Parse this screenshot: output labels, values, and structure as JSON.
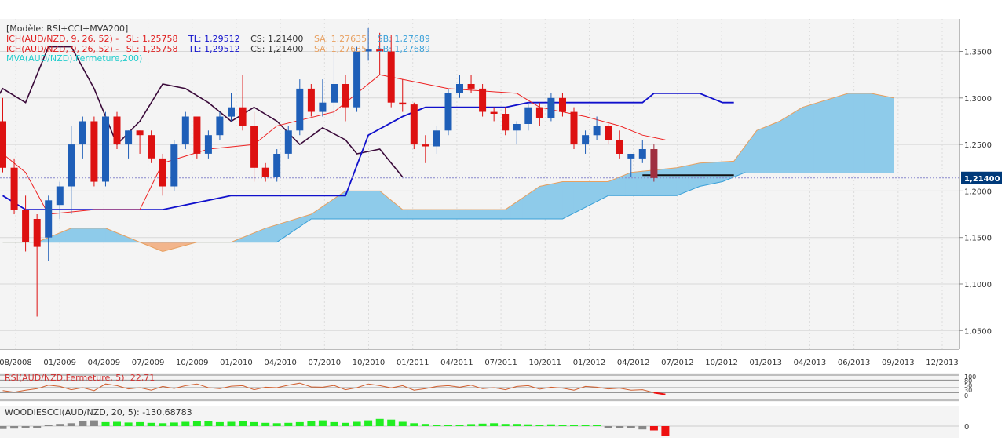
{
  "chart_data": {
    "type": "candlestick",
    "instrument": "AUD/NZD",
    "header": {
      "model": "[Modèle: RSI+CCI+MVA200]",
      "ich_lines": [
        {
          "prefix": "ICH(AUD/NZD, 9, 26, 52) -",
          "sl": "SL: 1,25758",
          "tl": "TL: 1,29512",
          "cs": "CS: 1,21400",
          "sa": "SA: 1,27635",
          "sb": "SB: 1,27689"
        },
        {
          "prefix": "ICH(AUD/NZD, 9, 26, 52) -",
          "sl": "SL: 1,25758",
          "tl": "TL: 1,29512",
          "cs": "CS: 1,21400",
          "sa": "SA: 1,27635",
          "sb": "SB: 1,27689"
        }
      ],
      "mva": "MVA(AUD/NZD).Fermeture,200)"
    },
    "colors": {
      "up": "#1f5fb8",
      "down": "#dd1111",
      "kijun": "#1010cc",
      "tenkan": "#ee2222",
      "chikou": "#3a0a3a",
      "senkou_a": "#e8a060",
      "senkou_b": "#3aa0d8",
      "cloud_fill": "#8ecbea",
      "cloud_bear_fill": "#f2b58c",
      "rsi_line": "#d06030",
      "cci_pos": "#22ee22",
      "cci_neg": "#ee1111",
      "cci_neutral": "#888888",
      "last_candle": "#a03040",
      "last_price_bg": "#003a7a",
      "label_sl": "#e02020",
      "label_tl": "#1010cc",
      "label_cs": "#333333",
      "label_sa": "#e8a060",
      "label_sb": "#3aa0d8",
      "label_mva": "#22cccc",
      "label_rsi": "#d03030",
      "label_cci": "#333333"
    },
    "y_axis": {
      "min": 1.03,
      "max": 1.385,
      "ticks": [
        {
          "value": 1.35,
          "label": "1,3500"
        },
        {
          "value": 1.3,
          "label": "1,3000"
        },
        {
          "value": 1.25,
          "label": "1,2500"
        },
        {
          "value": 1.2,
          "label": "1,2000"
        },
        {
          "value": 1.15,
          "label": "1,1500"
        },
        {
          "value": 1.1,
          "label": "1,1000"
        },
        {
          "value": 1.05,
          "label": "1,0500"
        }
      ]
    },
    "last_price": {
      "value": 1.214,
      "label": "1,21400"
    },
    "x_axis": {
      "labels": [
        "08/2008",
        "01/2009",
        "04/2009",
        "07/2009",
        "10/2009",
        "01/2010",
        "04/2010",
        "07/2010",
        "10/2010",
        "01/2011",
        "04/2011",
        "07/2011",
        "10/2011",
        "01/2012",
        "04/2012",
        "07/2012",
        "10/2012",
        "01/2013",
        "04/2013",
        "06/2013",
        "09/2013",
        "12/2013"
      ]
    },
    "candles": [
      {
        "date": "2008-06",
        "open": 1.275,
        "high": 1.3,
        "low": 1.22,
        "close": 1.225
      },
      {
        "date": "2008-07",
        "open": 1.225,
        "high": 1.235,
        "low": 1.175,
        "close": 1.18
      },
      {
        "date": "2008-08",
        "open": 1.18,
        "high": 1.195,
        "low": 1.135,
        "close": 1.145
      },
      {
        "date": "2008-09",
        "open": 1.17,
        "high": 1.175,
        "low": 1.065,
        "close": 1.14
      },
      {
        "date": "2008-10",
        "open": 1.15,
        "high": 1.195,
        "low": 1.125,
        "close": 1.19
      },
      {
        "date": "2008-11",
        "open": 1.185,
        "high": 1.21,
        "low": 1.17,
        "close": 1.205
      },
      {
        "date": "2008-12",
        "open": 1.205,
        "high": 1.27,
        "low": 1.175,
        "close": 1.25
      },
      {
        "date": "2009-01",
        "open": 1.25,
        "high": 1.28,
        "low": 1.235,
        "close": 1.275
      },
      {
        "date": "2009-02",
        "open": 1.275,
        "high": 1.28,
        "low": 1.205,
        "close": 1.21
      },
      {
        "date": "2009-03",
        "open": 1.21,
        "high": 1.285,
        "low": 1.205,
        "close": 1.28
      },
      {
        "date": "2009-04",
        "open": 1.28,
        "high": 1.285,
        "low": 1.245,
        "close": 1.25
      },
      {
        "date": "2009-05",
        "open": 1.25,
        "high": 1.265,
        "low": 1.235,
        "close": 1.265
      },
      {
        "date": "2009-06",
        "open": 1.265,
        "high": 1.265,
        "low": 1.24,
        "close": 1.26
      },
      {
        "date": "2009-07",
        "open": 1.26,
        "high": 1.265,
        "low": 1.23,
        "close": 1.235
      },
      {
        "date": "2009-08",
        "open": 1.235,
        "high": 1.24,
        "low": 1.195,
        "close": 1.205
      },
      {
        "date": "2009-09",
        "open": 1.205,
        "high": 1.255,
        "low": 1.2,
        "close": 1.25
      },
      {
        "date": "2009-10",
        "open": 1.25,
        "high": 1.285,
        "low": 1.245,
        "close": 1.28
      },
      {
        "date": "2009-11",
        "open": 1.28,
        "high": 1.28,
        "low": 1.235,
        "close": 1.24
      },
      {
        "date": "2009-12",
        "open": 1.24,
        "high": 1.265,
        "low": 1.235,
        "close": 1.26
      },
      {
        "date": "2010-01",
        "open": 1.26,
        "high": 1.285,
        "low": 1.255,
        "close": 1.28
      },
      {
        "date": "2010-02",
        "open": 1.28,
        "high": 1.305,
        "low": 1.275,
        "close": 1.29
      },
      {
        "date": "2010-03",
        "open": 1.29,
        "high": 1.325,
        "low": 1.265,
        "close": 1.27
      },
      {
        "date": "2010-04",
        "open": 1.27,
        "high": 1.285,
        "low": 1.21,
        "close": 1.225
      },
      {
        "date": "2010-05",
        "open": 1.225,
        "high": 1.23,
        "low": 1.21,
        "close": 1.215
      },
      {
        "date": "2010-06",
        "open": 1.215,
        "high": 1.245,
        "low": 1.21,
        "close": 1.24
      },
      {
        "date": "2010-07",
        "open": 1.24,
        "high": 1.27,
        "low": 1.235,
        "close": 1.265
      },
      {
        "date": "2010-08",
        "open": 1.265,
        "high": 1.32,
        "low": 1.26,
        "close": 1.31
      },
      {
        "date": "2010-09",
        "open": 1.31,
        "high": 1.315,
        "low": 1.28,
        "close": 1.285
      },
      {
        "date": "2010-10",
        "open": 1.285,
        "high": 1.32,
        "low": 1.28,
        "close": 1.295
      },
      {
        "date": "2010-11",
        "open": 1.295,
        "high": 1.35,
        "low": 1.28,
        "close": 1.315
      },
      {
        "date": "2010-12",
        "open": 1.315,
        "high": 1.325,
        "low": 1.275,
        "close": 1.29
      },
      {
        "date": "2011-01",
        "open": 1.29,
        "high": 1.355,
        "low": 1.285,
        "close": 1.35
      },
      {
        "date": "2011-02",
        "open": 1.35,
        "high": 1.375,
        "low": 1.34,
        "close": 1.352
      },
      {
        "date": "2011-03",
        "open": 1.352,
        "high": 1.37,
        "low": 1.325,
        "close": 1.35
      },
      {
        "date": "2011-04",
        "open": 1.35,
        "high": 1.368,
        "low": 1.29,
        "close": 1.295
      },
      {
        "date": "2011-05",
        "open": 1.295,
        "high": 1.32,
        "low": 1.285,
        "close": 1.293
      },
      {
        "date": "2011-06",
        "open": 1.293,
        "high": 1.295,
        "low": 1.245,
        "close": 1.25
      },
      {
        "date": "2011-07",
        "open": 1.25,
        "high": 1.26,
        "low": 1.23,
        "close": 1.248
      },
      {
        "date": "2011-08",
        "open": 1.248,
        "high": 1.27,
        "low": 1.24,
        "close": 1.265
      },
      {
        "date": "2011-09",
        "open": 1.265,
        "high": 1.31,
        "low": 1.26,
        "close": 1.305
      },
      {
        "date": "2011-10",
        "open": 1.305,
        "high": 1.325,
        "low": 1.3,
        "close": 1.315
      },
      {
        "date": "2011-11",
        "open": 1.315,
        "high": 1.325,
        "low": 1.305,
        "close": 1.31
      },
      {
        "date": "2011-12",
        "open": 1.31,
        "high": 1.315,
        "low": 1.28,
        "close": 1.285
      },
      {
        "date": "2012-01",
        "open": 1.285,
        "high": 1.29,
        "low": 1.275,
        "close": 1.283
      },
      {
        "date": "2012-02",
        "open": 1.283,
        "high": 1.29,
        "low": 1.26,
        "close": 1.265
      },
      {
        "date": "2012-03",
        "open": 1.265,
        "high": 1.275,
        "low": 1.25,
        "close": 1.272
      },
      {
        "date": "2012-04",
        "open": 1.272,
        "high": 1.295,
        "low": 1.265,
        "close": 1.29
      },
      {
        "date": "2012-05",
        "open": 1.29,
        "high": 1.295,
        "low": 1.27,
        "close": 1.278
      },
      {
        "date": "2012-06",
        "open": 1.278,
        "high": 1.305,
        "low": 1.275,
        "close": 1.3
      },
      {
        "date": "2012-07",
        "open": 1.3,
        "high": 1.305,
        "low": 1.28,
        "close": 1.285
      },
      {
        "date": "2012-08",
        "open": 1.285,
        "high": 1.29,
        "low": 1.245,
        "close": 1.25
      },
      {
        "date": "2012-09",
        "open": 1.25,
        "high": 1.265,
        "low": 1.24,
        "close": 1.26
      },
      {
        "date": "2012-10",
        "open": 1.26,
        "high": 1.28,
        "low": 1.255,
        "close": 1.27
      },
      {
        "date": "2012-11",
        "open": 1.27,
        "high": 1.272,
        "low": 1.25,
        "close": 1.255
      },
      {
        "date": "2012-12",
        "open": 1.255,
        "high": 1.265,
        "low": 1.235,
        "close": 1.24
      },
      {
        "date": "2013-01",
        "open": 1.235,
        "high": 1.24,
        "low": 1.215,
        "close": 1.24
      },
      {
        "date": "2013-02",
        "open": 1.235,
        "high": 1.255,
        "low": 1.23,
        "close": 1.245
      },
      {
        "date": "2013-03",
        "open": 1.245,
        "high": 1.25,
        "low": 1.21,
        "close": 1.214,
        "highlight": true
      }
    ],
    "tenkan_series": [
      [
        0,
        1.24
      ],
      [
        2,
        1.22
      ],
      [
        4,
        1.175
      ],
      [
        8,
        1.18
      ],
      [
        12,
        1.18
      ],
      [
        14,
        1.23
      ],
      [
        18,
        1.245
      ],
      [
        22,
        1.25
      ],
      [
        24,
        1.27
      ],
      [
        29,
        1.285
      ],
      [
        33,
        1.325
      ],
      [
        35,
        1.32
      ],
      [
        39,
        1.31
      ],
      [
        45,
        1.305
      ],
      [
        47,
        1.29
      ],
      [
        51,
        1.28
      ],
      [
        54,
        1.27
      ],
      [
        56,
        1.26
      ],
      [
        58,
        1.255
      ]
    ],
    "kijun_series": [
      [
        0,
        1.195
      ],
      [
        2,
        1.18
      ],
      [
        14,
        1.18
      ],
      [
        20,
        1.195
      ],
      [
        30,
        1.195
      ],
      [
        32,
        1.26
      ],
      [
        35,
        1.28
      ],
      [
        37,
        1.29
      ],
      [
        44,
        1.29
      ],
      [
        46,
        1.295
      ],
      [
        56,
        1.295
      ],
      [
        57,
        1.305
      ],
      [
        61,
        1.305
      ],
      [
        63,
        1.295
      ],
      [
        64,
        1.295
      ]
    ],
    "chikou_series": [
      [
        -2,
        1.27
      ],
      [
        0,
        1.31
      ],
      [
        2,
        1.295
      ],
      [
        4,
        1.355
      ],
      [
        6,
        1.355
      ],
      [
        8,
        1.31
      ],
      [
        10,
        1.25
      ],
      [
        12,
        1.275
      ],
      [
        14,
        1.315
      ],
      [
        16,
        1.31
      ],
      [
        18,
        1.295
      ],
      [
        20,
        1.275
      ],
      [
        22,
        1.29
      ],
      [
        24,
        1.275
      ],
      [
        26,
        1.25
      ],
      [
        28,
        1.268
      ],
      [
        30,
        1.255
      ],
      [
        31,
        1.24
      ],
      [
        33,
        1.245
      ],
      [
        35,
        1.215
      ]
    ],
    "cloud": {
      "x_end": 78,
      "senkou_a": [
        [
          0,
          1.145
        ],
        [
          3,
          1.145
        ],
        [
          6,
          1.16
        ],
        [
          9,
          1.16
        ],
        [
          12,
          1.145
        ],
        [
          14,
          1.135
        ],
        [
          17,
          1.145
        ],
        [
          20,
          1.145
        ],
        [
          23,
          1.16
        ],
        [
          27,
          1.175
        ],
        [
          30,
          1.2
        ],
        [
          33,
          1.2
        ],
        [
          35,
          1.18
        ],
        [
          44,
          1.18
        ],
        [
          47,
          1.205
        ],
        [
          49,
          1.21
        ],
        [
          53,
          1.21
        ],
        [
          55,
          1.22
        ],
        [
          59,
          1.225
        ],
        [
          61,
          1.23
        ],
        [
          64,
          1.232
        ],
        [
          66,
          1.265
        ],
        [
          68,
          1.275
        ],
        [
          70,
          1.29
        ],
        [
          74,
          1.305
        ],
        [
          76,
          1.305
        ],
        [
          78,
          1.3
        ],
        [
          84,
          1.3
        ]
      ],
      "senkou_b": [
        [
          0,
          1.145
        ],
        [
          24,
          1.145
        ],
        [
          27,
          1.17
        ],
        [
          36,
          1.17
        ],
        [
          46,
          1.17
        ],
        [
          49,
          1.17
        ],
        [
          53,
          1.195
        ],
        [
          59,
          1.195
        ],
        [
          61,
          1.205
        ],
        [
          63,
          1.21
        ],
        [
          65,
          1.22
        ],
        [
          84,
          1.22
        ]
      ]
    },
    "support_line": {
      "from": 56,
      "to": 64,
      "value": 1.217
    },
    "rsi": {
      "label": "RSI(AUD/NZD.Fermeture, 5): 22,71",
      "ticks": [
        "100",
        "80",
        "50",
        "30",
        "0"
      ],
      "values": [
        38,
        32,
        40,
        46,
        60,
        55,
        42,
        50,
        38,
        65,
        58,
        45,
        50,
        40,
        55,
        47,
        58,
        65,
        50,
        46,
        56,
        58,
        42,
        52,
        50,
        60,
        68,
        53,
        52,
        59,
        42,
        50,
        65,
        58,
        49,
        58,
        40,
        46,
        55,
        58,
        52,
        60,
        46,
        50,
        42,
        55,
        58,
        44,
        52,
        48,
        40,
        55,
        52,
        45,
        48,
        40,
        42,
        30,
        23
      ]
    },
    "cci": {
      "label": "WOODIESCCI(AUD/NZD, 20, 5): -130,68783",
      "zero_label": "0",
      "values": [
        -40,
        -35,
        -20,
        -25,
        20,
        30,
        40,
        70,
        80,
        55,
        60,
        50,
        55,
        45,
        40,
        50,
        60,
        75,
        65,
        55,
        60,
        70,
        55,
        45,
        40,
        45,
        55,
        70,
        80,
        55,
        45,
        60,
        80,
        100,
        90,
        60,
        40,
        30,
        20,
        18,
        22,
        28,
        35,
        40,
        30,
        30,
        25,
        22,
        25,
        20,
        18,
        15,
        10,
        -15,
        -10,
        -20,
        -45,
        -60,
        -130
      ],
      "colors": [
        "neutral",
        "neutral",
        "neutral",
        "neutral",
        "neutral",
        "neutral",
        "neutral",
        "neutral",
        "neutral",
        "pos",
        "pos",
        "pos",
        "pos",
        "pos",
        "pos",
        "pos",
        "pos",
        "pos",
        "pos",
        "pos",
        "pos",
        "pos",
        "pos",
        "pos",
        "pos",
        "pos",
        "pos",
        "pos",
        "pos",
        "pos",
        "pos",
        "pos",
        "pos",
        "pos",
        "pos",
        "pos",
        "pos",
        "pos",
        "pos",
        "pos",
        "pos",
        "pos",
        "pos",
        "pos",
        "pos",
        "pos",
        "pos",
        "pos",
        "pos",
        "pos",
        "pos",
        "pos",
        "pos",
        "neutral",
        "neutral",
        "neutral",
        "neutral",
        "neg",
        "neg"
      ]
    }
  }
}
